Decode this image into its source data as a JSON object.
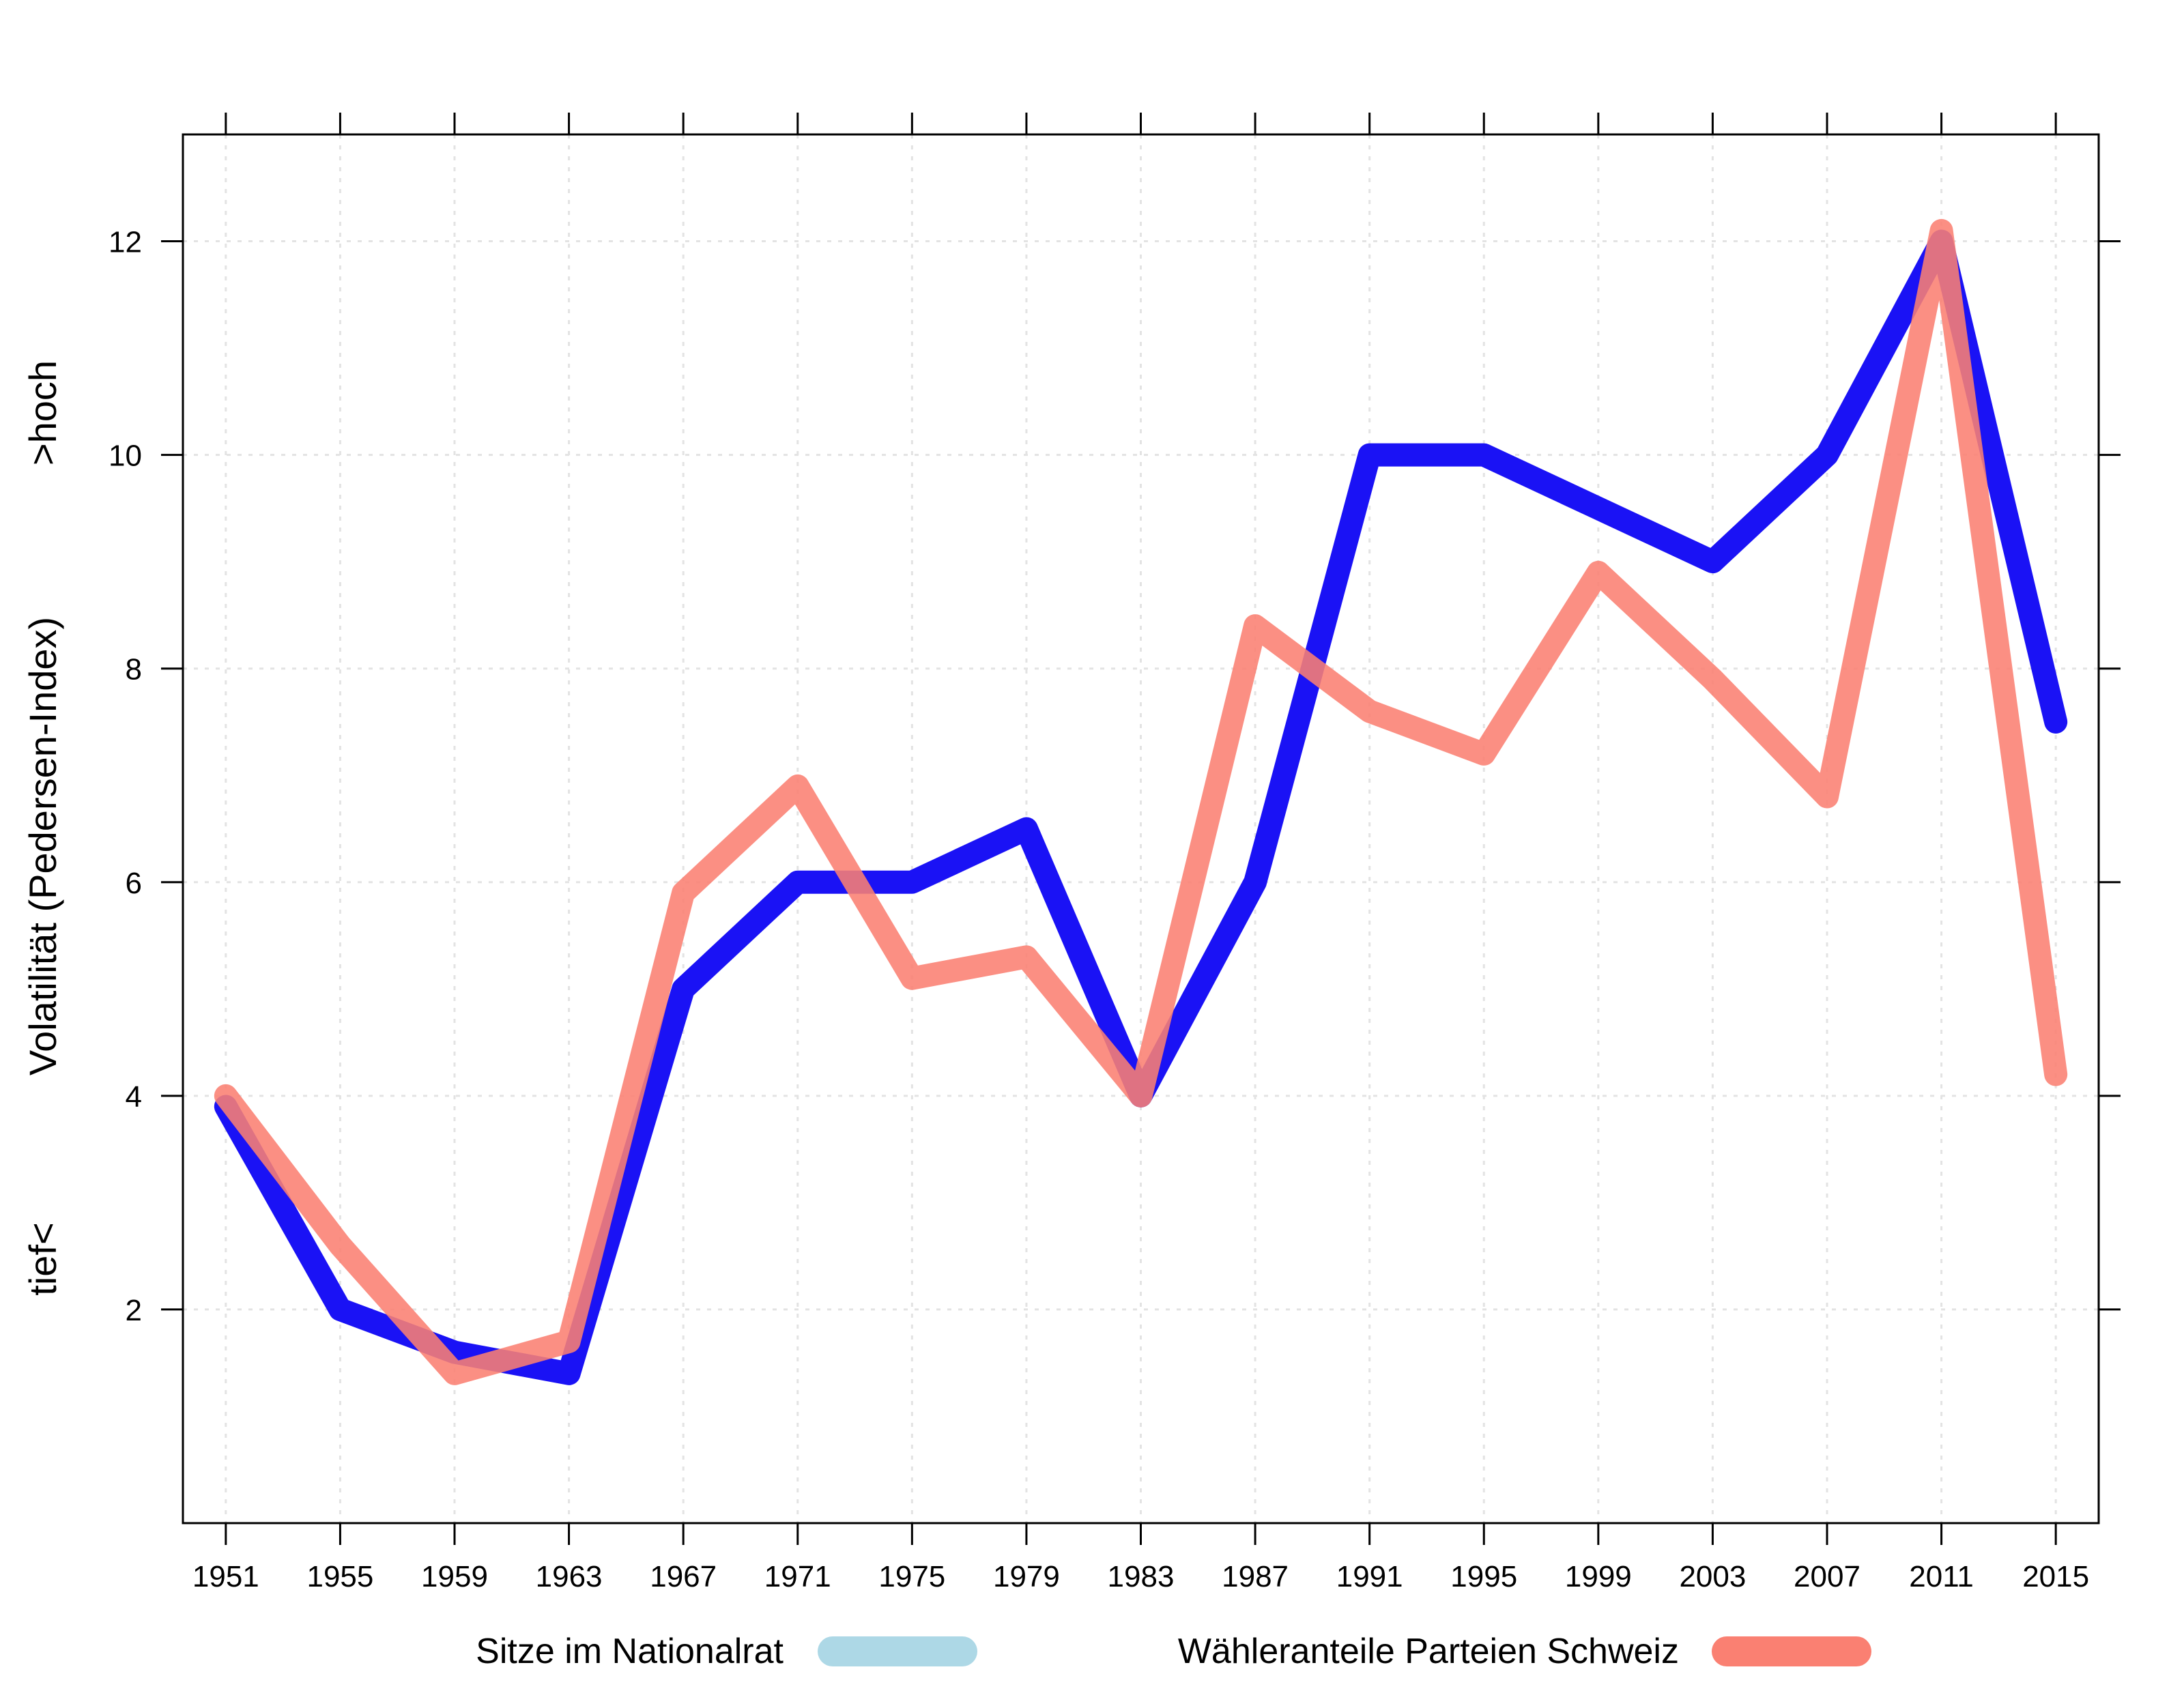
{
  "chart_data": {
    "type": "line",
    "x": [
      1951,
      1955,
      1959,
      1963,
      1967,
      1971,
      1975,
      1979,
      1983,
      1987,
      1991,
      1995,
      1999,
      2003,
      2007,
      2011,
      2015
    ],
    "series": [
      {
        "name": "Sitze im Nationalrat",
        "color": "#1a12f5",
        "legend_color": "#add8e6",
        "values": [
          3.9,
          2.0,
          1.6,
          1.4,
          5.0,
          6.0,
          6.0,
          6.5,
          4.0,
          6.0,
          10.0,
          10.0,
          9.5,
          9.0,
          10.0,
          12.0,
          7.5
        ]
      },
      {
        "name": "Wähleranteile Parteien Schweiz",
        "color": "#fa8072",
        "legend_color": "#fa8072",
        "values": [
          4.0,
          2.6,
          1.4,
          1.7,
          5.9,
          6.9,
          5.1,
          5.3,
          4.0,
          8.4,
          7.6,
          7.2,
          8.9,
          7.9,
          6.8,
          12.1,
          4.2
        ]
      }
    ],
    "ylabel": "Volatilität (Pedersen-Index)",
    "ylabel_low": "tief<",
    "ylabel_high": ">hoch",
    "ylim": [
      0,
      13
    ],
    "xlim": [
      1949.5,
      2016.5
    ],
    "y_ticks": [
      2,
      4,
      6,
      8,
      10,
      12
    ],
    "y_tick_labels": [
      "2",
      "4",
      "6",
      "8",
      "10",
      "12"
    ],
    "x_tick_labels": [
      "1951",
      "1955",
      "1959",
      "1963",
      "1967",
      "1971",
      "1975",
      "1979",
      "1983",
      "1987",
      "1991",
      "1995",
      "1999",
      "2003",
      "2007",
      "2011",
      "2015"
    ],
    "grid": true,
    "legend_position": "bottom"
  }
}
